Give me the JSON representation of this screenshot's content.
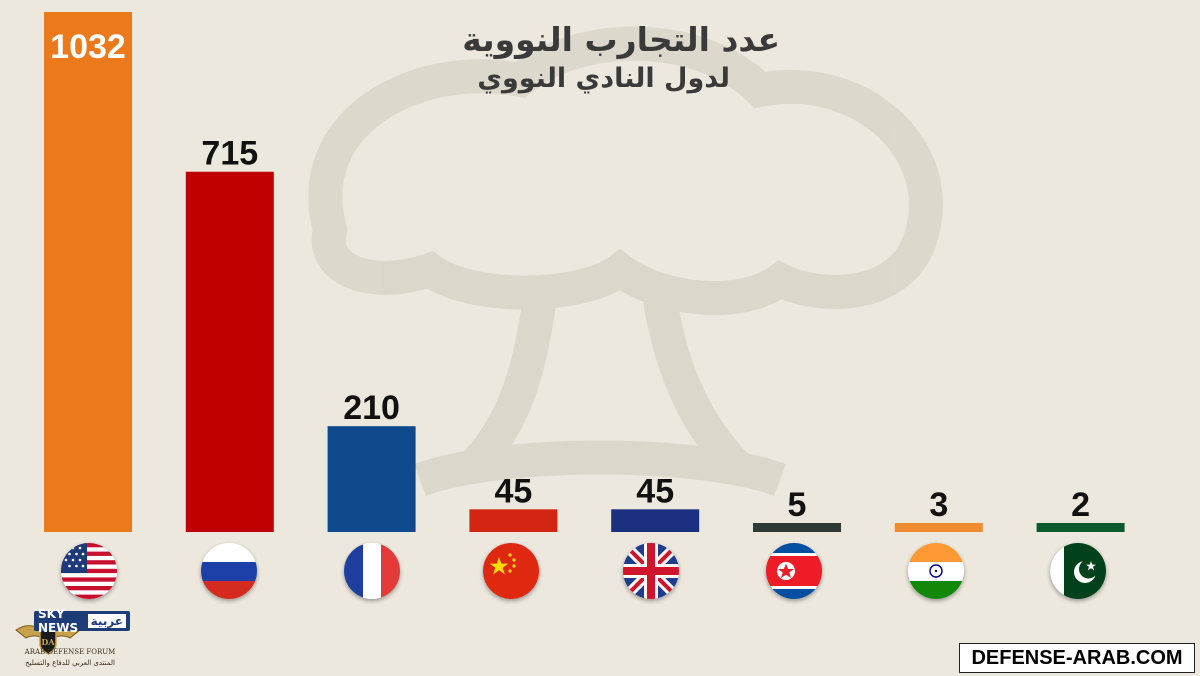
{
  "title": "عدد التجارب النووية",
  "subtitle": "لدول النادي النووي",
  "chart_data": {
    "type": "bar",
    "categories": [
      "United States",
      "Russia",
      "France",
      "China",
      "United Kingdom",
      "North Korea",
      "India",
      "Pakistan"
    ],
    "values": [
      1032,
      715,
      210,
      45,
      45,
      5,
      3,
      2
    ],
    "colors": [
      "#ec7a1c",
      "#c00000",
      "#0e4a8c",
      "#d32512",
      "#1b2f80",
      "#2e3a35",
      "#ef8c2f",
      "#0b5a2c"
    ],
    "value_labels": [
      "1032",
      "715",
      "210",
      "45",
      "45",
      "5",
      "3",
      "2"
    ],
    "title": "عدد التجارب النووية",
    "subtitle": "لدول النادي النووي",
    "xlabel": "",
    "ylabel": "",
    "ylim": [
      0,
      1032
    ],
    "grid": false,
    "legend": "none"
  },
  "flags": [
    "usa-flag-icon",
    "russia-flag-icon",
    "france-flag-icon",
    "china-flag-icon",
    "uk-flag-icon",
    "north-korea-flag-icon",
    "india-flag-icon",
    "pakistan-flag-icon"
  ],
  "branding": {
    "sky_news": "SKY NEWS",
    "sky_news_arabic": "عربية",
    "forum_en": "ARAB DEFENSE FORUM",
    "forum_ar": "المنتدى العربي للدفاع والتسليح",
    "watermark": "DEFENSE-ARAB.COM"
  }
}
